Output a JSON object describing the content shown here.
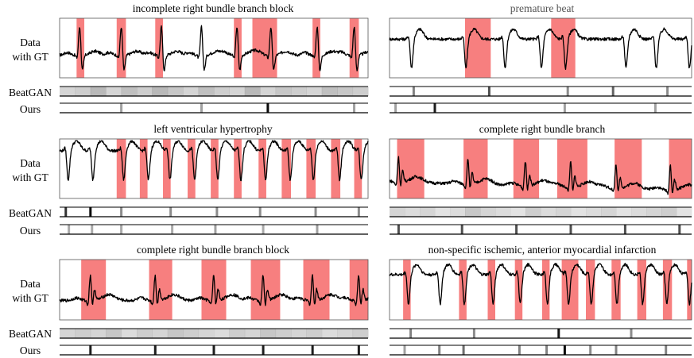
{
  "figure": {
    "row_labels": {
      "data_line1": "Data",
      "data_line2": "with GT",
      "baseline": "BeatGAN",
      "ours": "Ours"
    },
    "colors": {
      "gt_region": "#f77f7f",
      "signal": "#000000",
      "frame": "#555555"
    }
  },
  "chart_data": [
    {
      "type": "line",
      "title": "incomplete right bundle branch block",
      "x_range": [
        0,
        1
      ],
      "beats": [
        0.065,
        0.2,
        0.33,
        0.46,
        0.575,
        0.685,
        0.835,
        0.955
      ],
      "gt_regions": [
        [
          0.055,
          0.08
        ],
        [
          0.185,
          0.215
        ],
        [
          0.31,
          0.335
        ],
        [
          0.565,
          0.59
        ],
        [
          0.625,
          0.705
        ],
        [
          0.82,
          0.845
        ],
        [
          0.94,
          0.97
        ]
      ],
      "BeatGAN": {
        "values": [
          0.3,
          0.35,
          0.5,
          0.3,
          0.45,
          0.35,
          0.5,
          0.4,
          0.3,
          0.45,
          0.35,
          0.3,
          0.5,
          0.3,
          0.4,
          0.35,
          0.3,
          0.45,
          0.4,
          0.35
        ]
      },
      "Ours": {
        "peaks": [
          [
            0.2,
            0.2
          ],
          [
            0.46,
            0.2
          ],
          [
            0.675,
            0.95
          ],
          [
            0.955,
            0.2
          ]
        ]
      }
    },
    {
      "type": "line",
      "title": "premature beat",
      "x_range": [
        0,
        1
      ],
      "beats": [
        0.07,
        0.25,
        0.38,
        0.5,
        0.58,
        0.78,
        0.88,
        0.99
      ],
      "gt_regions": [
        [
          0.25,
          0.335
        ],
        [
          0.535,
          0.615
        ]
      ],
      "BeatGAN": {
        "peaks": [
          [
            0.08,
            0.35
          ],
          [
            0.33,
            0.6
          ],
          [
            0.59,
            0.3
          ],
          [
            0.74,
            0.5
          ],
          [
            0.92,
            0.3
          ]
        ]
      },
      "Ours": {
        "peaks": [
          [
            0.02,
            0.2
          ],
          [
            0.15,
            0.85
          ],
          [
            0.58,
            0.2
          ],
          [
            0.88,
            0.2
          ]
        ]
      }
    },
    {
      "type": "line",
      "title": "left ventricular hypertrophy",
      "x_range": [
        0,
        1
      ],
      "beats": [
        0.025,
        0.105,
        0.205,
        0.285,
        0.355,
        0.435,
        0.51,
        0.585,
        0.665,
        0.745,
        0.82,
        0.905,
        0.975
      ],
      "gt_regions": [
        [
          0.185,
          0.215
        ],
        [
          0.26,
          0.285
        ],
        [
          0.335,
          0.36
        ],
        [
          0.415,
          0.44
        ],
        [
          0.49,
          0.515
        ],
        [
          0.565,
          0.59
        ],
        [
          0.645,
          0.67
        ],
        [
          0.72,
          0.75
        ],
        [
          0.8,
          0.83
        ],
        [
          0.88,
          0.91
        ],
        [
          0.955,
          0.98
        ]
      ],
      "BeatGAN": {
        "peaks": [
          [
            0.02,
            0.75
          ],
          [
            0.1,
            0.95
          ],
          [
            0.2,
            0.3
          ],
          [
            0.36,
            0.3
          ],
          [
            0.51,
            0.3
          ],
          [
            0.65,
            0.3
          ],
          [
            0.83,
            0.3
          ],
          [
            0.97,
            0.3
          ]
        ]
      },
      "Ours": {
        "peaks": [
          [
            0.03,
            0.15
          ],
          [
            0.105,
            0.15
          ],
          [
            0.2,
            0.15
          ],
          [
            0.365,
            0.15
          ],
          [
            0.505,
            0.2
          ],
          [
            0.66,
            0.15
          ],
          [
            0.835,
            0.2
          ]
        ]
      }
    },
    {
      "type": "line",
      "title": "complete right bundle branch",
      "x_range": [
        0,
        1
      ],
      "beats": [
        0.03,
        0.26,
        0.45,
        0.6,
        0.75,
        0.93
      ],
      "gt_regions": [
        [
          0.025,
          0.115
        ],
        [
          0.245,
          0.325
        ],
        [
          0.41,
          0.495
        ],
        [
          0.555,
          0.655
        ],
        [
          0.745,
          0.835
        ],
        [
          0.925,
          1.0
        ]
      ],
      "BeatGAN": {
        "values": [
          0.3,
          0.25,
          0.3,
          0.2,
          0.25,
          0.4,
          0.3,
          0.25,
          0.2,
          0.35,
          0.25,
          0.3,
          0.2,
          0.25,
          0.3,
          0.2,
          0.25,
          0.3,
          0.35,
          0.2
        ]
      },
      "Ours": {
        "peaks": [
          [
            0.03,
            0.6
          ],
          [
            0.24,
            0.6
          ],
          [
            0.42,
            0.6
          ],
          [
            0.6,
            0.6
          ],
          [
            0.78,
            0.6
          ],
          [
            0.96,
            0.6
          ]
        ]
      }
    },
    {
      "type": "line",
      "title": "complete right bundle branch block",
      "x_range": [
        0,
        1
      ],
      "beats": [
        0.1,
        0.31,
        0.5,
        0.66,
        0.82,
        0.97
      ],
      "gt_regions": [
        [
          0.07,
          0.15
        ],
        [
          0.29,
          0.365
        ],
        [
          0.46,
          0.54
        ],
        [
          0.62,
          0.715
        ],
        [
          0.79,
          0.875
        ],
        [
          0.94,
          1.0
        ]
      ],
      "BeatGAN": {
        "values": [
          0.3,
          0.35,
          0.3,
          0.4,
          0.25,
          0.35,
          0.3,
          0.4,
          0.35,
          0.3,
          0.25,
          0.35,
          0.3,
          0.4,
          0.35,
          0.3,
          0.35,
          0.25,
          0.3,
          0.35
        ]
      },
      "Ours": {
        "peaks": [
          [
            0.1,
            0.85
          ],
          [
            0.31,
            0.85
          ],
          [
            0.5,
            0.85
          ],
          [
            0.66,
            0.85
          ],
          [
            0.82,
            0.85
          ],
          [
            0.97,
            0.85
          ]
        ]
      }
    },
    {
      "type": "line",
      "title": "non-specific ischemic, anterior myocardial infarction",
      "x_range": [
        0,
        1
      ],
      "beats": [
        0.06,
        0.165,
        0.245,
        0.34,
        0.43,
        0.52,
        0.59,
        0.665,
        0.75,
        0.835,
        0.915,
        0.99
      ],
      "gt_regions": [
        [
          0.045,
          0.07
        ],
        [
          0.23,
          0.255
        ],
        [
          0.325,
          0.35
        ],
        [
          0.415,
          0.44
        ],
        [
          0.505,
          0.53
        ],
        [
          0.57,
          0.625
        ],
        [
          0.65,
          0.68
        ],
        [
          0.735,
          0.765
        ],
        [
          0.82,
          0.85
        ],
        [
          0.905,
          0.935
        ],
        [
          0.985,
          1.0
        ]
      ],
      "BeatGAN": {
        "peaks": [
          [
            0.07,
            0.35
          ],
          [
            0.28,
            0.3
          ],
          [
            0.56,
            0.9
          ],
          [
            0.8,
            0.3
          ]
        ]
      },
      "Ours": {
        "peaks": [
          [
            0.05,
            0.2
          ],
          [
            0.165,
            0.35
          ],
          [
            0.245,
            0.45
          ],
          [
            0.43,
            0.35
          ],
          [
            0.52,
            0.35
          ],
          [
            0.58,
            0.95
          ],
          [
            0.665,
            0.3
          ],
          [
            0.75,
            0.35
          ],
          [
            0.915,
            0.35
          ]
        ]
      }
    }
  ]
}
